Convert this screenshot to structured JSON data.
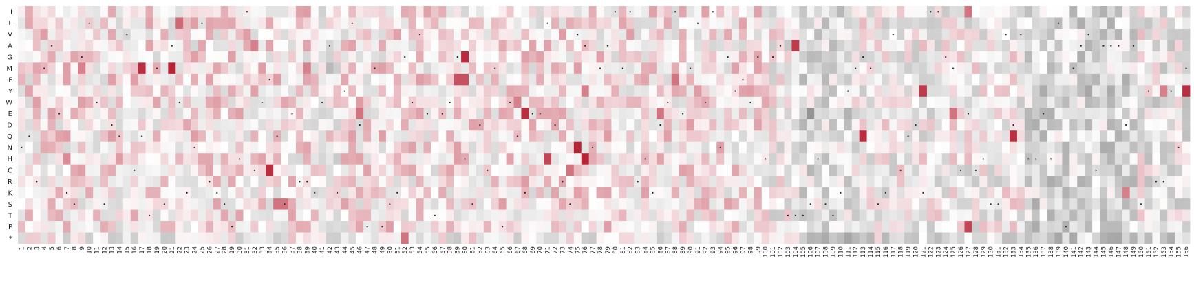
{
  "chart_data": {
    "type": "heatmap",
    "title": "",
    "xlabel": "",
    "ylabel": "",
    "rows": [
      "I",
      "L",
      "V",
      "A",
      "G",
      "M",
      "F",
      "Y",
      "W",
      "E",
      "D",
      "Q",
      "N",
      "H",
      "C",
      "R",
      "K",
      "S",
      "T",
      "P",
      "*"
    ],
    "columns_range": [
      1,
      156
    ],
    "color_scale": {
      "negative": "#808080",
      "neutral": "#ffffff",
      "positive": "#b2182b",
      "range": [
        -1,
        1
      ]
    },
    "dot_color": "#222222",
    "grid": false,
    "legend": "none",
    "strong_cells": [
      {
        "row": "M",
        "col": 17,
        "value": 0.9
      },
      {
        "row": "M",
        "col": 21,
        "value": 0.95
      },
      {
        "row": "N",
        "col": 75,
        "value": 0.95
      },
      {
        "row": "H",
        "col": 76,
        "value": 0.95
      },
      {
        "row": "C",
        "col": 34,
        "value": 0.9
      },
      {
        "row": "G",
        "col": 60,
        "value": 0.92
      },
      {
        "row": "F",
        "col": 59,
        "value": 0.75
      },
      {
        "row": "F",
        "col": 60,
        "value": 0.75
      },
      {
        "row": "E",
        "col": 68,
        "value": 0.9
      },
      {
        "row": "Q",
        "col": 113,
        "value": 0.9
      },
      {
        "row": "Q",
        "col": 133,
        "value": 0.9
      },
      {
        "row": "Y",
        "col": 121,
        "value": 0.85
      },
      {
        "row": "Y",
        "col": 156,
        "value": 0.9
      },
      {
        "row": "A",
        "col": 104,
        "value": 0.85
      },
      {
        "row": "P",
        "col": 127,
        "value": 0.8
      },
      {
        "row": "*",
        "col": 52,
        "value": 0.6
      },
      {
        "row": "H",
        "col": 71,
        "value": 0.8
      },
      {
        "row": "I",
        "col": 127,
        "value": 0.6
      },
      {
        "row": "S",
        "col": 35,
        "value": 0.6
      },
      {
        "row": "S",
        "col": 36,
        "value": 0.6
      },
      {
        "row": "L",
        "col": 22,
        "value": 0.65
      },
      {
        "row": "F",
        "col": 88,
        "value": 0.6
      },
      {
        "row": "E",
        "col": 86,
        "value": 0.6
      },
      {
        "row": "M",
        "col": 39,
        "value": 0.55
      },
      {
        "row": "Y",
        "col": 76,
        "value": 0.55
      },
      {
        "row": "C",
        "col": 74,
        "value": 0.6
      },
      {
        "row": "E",
        "col": 46,
        "value": 0.6
      },
      {
        "row": "E",
        "col": 125,
        "value": 0.6
      },
      {
        "row": "K",
        "col": 148,
        "value": 0.55
      },
      {
        "row": "Y",
        "col": 153,
        "value": 0.55
      },
      {
        "row": "A",
        "col": 32,
        "value": 0.55
      },
      {
        "row": "H",
        "col": 7,
        "value": 0.5
      },
      {
        "row": "M",
        "col": 9,
        "value": 0.55
      },
      {
        "row": "W",
        "col": 67,
        "value": 0.55
      }
    ],
    "strong_negative_cells": [
      {
        "row": "E",
        "col": 106,
        "value": -0.85
      },
      {
        "row": "M",
        "col": 42,
        "value": -0.55
      },
      {
        "row": "Y",
        "col": 143,
        "value": -0.7
      },
      {
        "row": "Y",
        "col": 146,
        "value": -0.65
      },
      {
        "row": "E",
        "col": 137,
        "value": -0.6
      },
      {
        "row": "I",
        "col": 141,
        "value": -0.6
      },
      {
        "row": "L",
        "col": 108,
        "value": -0.55
      }
    ]
  }
}
